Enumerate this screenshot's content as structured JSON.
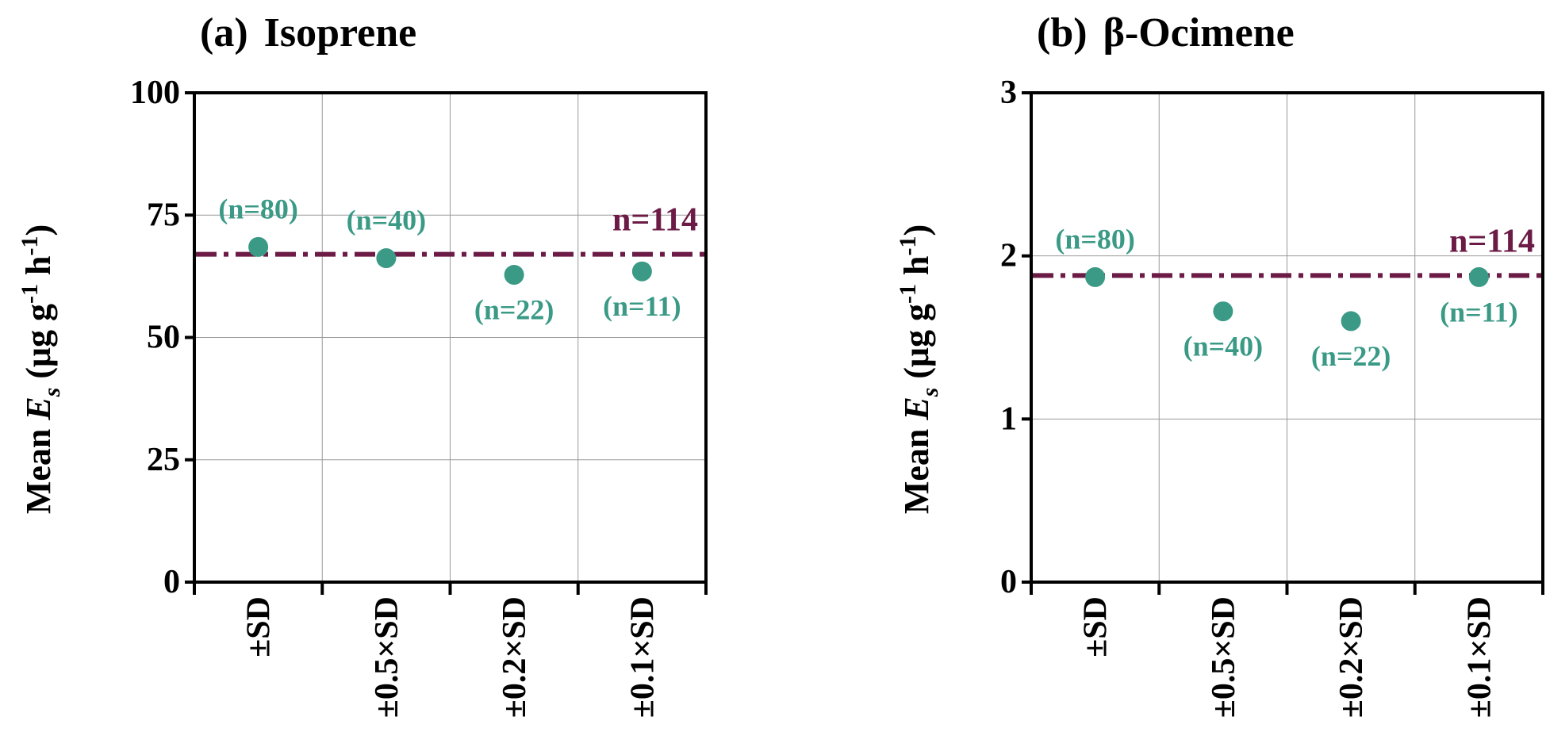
{
  "figure": {
    "y_axis_label_prefix": "Mean ",
    "y_axis_label_var": "E",
    "y_axis_label_sub": "s",
    "y_axis_label_rest_1": " (μg g",
    "y_axis_label_sup_1": "-1",
    "y_axis_label_rest_2": " h",
    "y_axis_label_sup_2": "-1",
    "y_axis_label_rest_3": ")"
  },
  "colors": {
    "point": "#3a9a86",
    "reference_line": "#6b1b45",
    "axis": "#000000",
    "grid": "#999999"
  },
  "chart_data": [
    {
      "type": "scatter",
      "panel_label": "(a)",
      "title": "Isoprene",
      "categories": [
        "±SD",
        "±0.5×SD",
        "±0.2×SD",
        "±0.1×SD"
      ],
      "values": [
        68.5,
        66.2,
        62.8,
        63.5
      ],
      "n_labels": [
        "(n=80)",
        "(n=40)",
        "(n=22)",
        "(n=11)"
      ],
      "n_label_position": [
        "above",
        "above",
        "below",
        "below"
      ],
      "reference_value": 67,
      "reference_label": "n=114",
      "ylim": [
        0,
        100
      ],
      "yticks": [
        0,
        25,
        50,
        75,
        100
      ],
      "grid": true
    },
    {
      "type": "scatter",
      "panel_label": "(b)",
      "title": "β-Ocimene",
      "categories": [
        "±SD",
        "±0.5×SD",
        "±0.2×SD",
        "±0.1×SD"
      ],
      "values": [
        1.87,
        1.66,
        1.6,
        1.87
      ],
      "n_labels": [
        "(n=80)",
        "(n=40)",
        "(n=22)",
        "(n=11)"
      ],
      "n_label_position": [
        "above",
        "below",
        "below",
        "below"
      ],
      "reference_value": 1.88,
      "reference_label": "n=114",
      "ylim": [
        0,
        3
      ],
      "yticks": [
        0,
        1,
        2,
        3
      ],
      "grid": true
    }
  ]
}
